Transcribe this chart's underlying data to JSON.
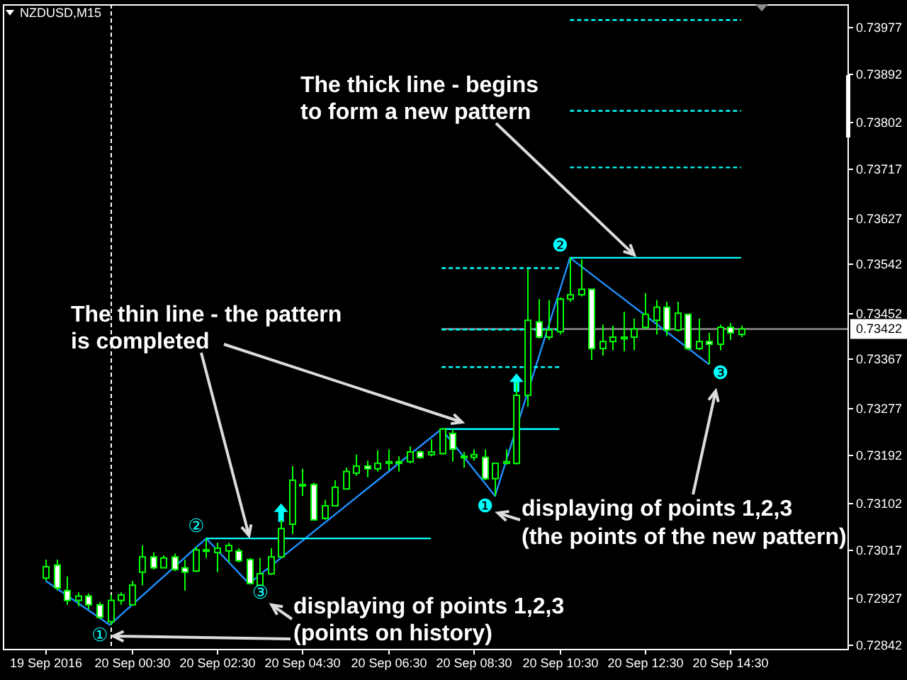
{
  "chart_data": {
    "type": "candlestick",
    "title": "NZDUSD,M15",
    "color": "#00ff00",
    "x": [
      "2016-09-19T22:30",
      "2016-09-19T22:45",
      "2016-09-19T23:00",
      "2016-09-19T23:15",
      "2016-09-19T23:30",
      "2016-09-19T23:45",
      "2016-09-20T00:00",
      "2016-09-20T00:15",
      "2016-09-20T00:30",
      "2016-09-20T00:45",
      "2016-09-20T01:00",
      "2016-09-20T01:15",
      "2016-09-20T01:30",
      "2016-09-20T01:45",
      "2016-09-20T02:00",
      "2016-09-20T02:15",
      "2016-09-20T02:30",
      "2016-09-20T02:45",
      "2016-09-20T03:00",
      "2016-09-20T03:15",
      "2016-09-20T03:30",
      "2016-09-20T03:45",
      "2016-09-20T04:00",
      "2016-09-20T04:15",
      "2016-09-20T04:30",
      "2016-09-20T04:45",
      "2016-09-20T05:00",
      "2016-09-20T05:15",
      "2016-09-20T05:30",
      "2016-09-20T05:45",
      "2016-09-20T06:00",
      "2016-09-20T06:15",
      "2016-09-20T06:30",
      "2016-09-20T06:45",
      "2016-09-20T07:00",
      "2016-09-20T07:15",
      "2016-09-20T07:30",
      "2016-09-20T07:45",
      "2016-09-20T08:00",
      "2016-09-20T08:15",
      "2016-09-20T08:30",
      "2016-09-20T08:45",
      "2016-09-20T09:00",
      "2016-09-20T09:15",
      "2016-09-20T09:30",
      "2016-09-20T09:45",
      "2016-09-20T10:00",
      "2016-09-20T10:15",
      "2016-09-20T10:30",
      "2016-09-20T10:45",
      "2016-09-20T11:00",
      "2016-09-20T11:15",
      "2016-09-20T11:30",
      "2016-09-20T11:45",
      "2016-09-20T12:00",
      "2016-09-20T12:15",
      "2016-09-20T12:30",
      "2016-09-20T12:45",
      "2016-09-20T13:00",
      "2016-09-20T13:15",
      "2016-09-20T13:30",
      "2016-09-20T13:45",
      "2016-09-20T14:00",
      "2016-09-20T14:15",
      "2016-09-20T14:30",
      "2016-09-20T14:45"
    ],
    "ohlc": [
      [
        0.72964,
        0.72998,
        0.72959,
        0.72985
      ],
      [
        0.72988,
        0.72998,
        0.72941,
        0.72946
      ],
      [
        0.72941,
        0.72967,
        0.72915,
        0.72923
      ],
      [
        0.72923,
        0.72938,
        0.72912,
        0.72931
      ],
      [
        0.72931,
        0.72936,
        0.72907,
        0.72915
      ],
      [
        0.72915,
        0.7292,
        0.72889,
        0.72892
      ],
      [
        0.72884,
        0.72933,
        0.72878,
        0.72923
      ],
      [
        0.72923,
        0.72938,
        0.72915,
        0.72933
      ],
      [
        0.72915,
        0.72959,
        0.72915,
        0.72951
      ],
      [
        0.72975,
        0.73024,
        0.72951,
        0.73003
      ],
      [
        0.73003,
        0.73011,
        0.7298,
        0.72983
      ],
      [
        0.72983,
        0.73006,
        0.72983,
        0.73001
      ],
      [
        0.73003,
        0.73009,
        0.72977,
        0.7298
      ],
      [
        0.72983,
        0.72998,
        0.72941,
        0.72975
      ],
      [
        0.72977,
        0.73022,
        0.72975,
        0.73016
      ],
      [
        0.73016,
        0.73037,
        0.73001,
        0.73014
      ],
      [
        0.73011,
        0.73029,
        0.72975,
        0.73019
      ],
      [
        0.73014,
        0.73029,
        0.72993,
        0.73024
      ],
      [
        0.73014,
        0.73019,
        0.72993,
        0.72996
      ],
      [
        0.72998,
        0.73001,
        0.72954,
        0.72954
      ],
      [
        0.72951,
        0.73001,
        0.72951,
        0.72972
      ],
      [
        0.72972,
        0.73019,
        0.7297,
        0.73003
      ],
      [
        0.73003,
        0.73071,
        0.73003,
        0.73055
      ],
      [
        0.73063,
        0.7317,
        0.73045,
        0.73144
      ],
      [
        0.73134,
        0.73165,
        0.73115,
        0.73136
      ],
      [
        0.73136,
        0.73139,
        0.73071,
        0.73071
      ],
      [
        0.73074,
        0.73108,
        0.73071,
        0.73097
      ],
      [
        0.73097,
        0.73144,
        0.73097,
        0.73131
      ],
      [
        0.73128,
        0.73167,
        0.73128,
        0.7316
      ],
      [
        0.73157,
        0.73191,
        0.73152,
        0.7317
      ],
      [
        0.7317,
        0.7318,
        0.73149,
        0.73165
      ],
      [
        0.73165,
        0.73199,
        0.7316,
        0.73175
      ],
      [
        0.73175,
        0.73201,
        0.73162,
        0.73178
      ],
      [
        0.73178,
        0.73188,
        0.7316,
        0.73175
      ],
      [
        0.73178,
        0.73206,
        0.73175,
        0.73196
      ],
      [
        0.73196,
        0.73199,
        0.73183,
        0.73186
      ],
      [
        0.73191,
        0.73219,
        0.73188,
        0.73196
      ],
      [
        0.73193,
        0.73238,
        0.73191,
        0.73238
      ],
      [
        0.7323,
        0.73238,
        0.73178,
        0.73201
      ],
      [
        0.73188,
        0.73196,
        0.73167,
        0.73186
      ],
      [
        0.73186,
        0.73201,
        0.7318,
        0.73191
      ],
      [
        0.73186,
        0.73201,
        0.73144,
        0.73147
      ],
      [
        0.73147,
        0.73175,
        0.73115,
        0.73175
      ],
      [
        0.73175,
        0.73201,
        0.73173,
        0.73178
      ],
      [
        0.73175,
        0.73324,
        0.73173,
        0.733
      ],
      [
        0.733,
        0.73532,
        0.73279,
        0.73438
      ],
      [
        0.73435,
        0.73477,
        0.73404,
        0.73407
      ],
      [
        0.73407,
        0.73475,
        0.73402,
        0.7342
      ],
      [
        0.73417,
        0.7348,
        0.73412,
        0.73477
      ],
      [
        0.73477,
        0.73553,
        0.73472,
        0.73485
      ],
      [
        0.73485,
        0.7355,
        0.73482,
        0.73495
      ],
      [
        0.73495,
        0.73495,
        0.73365,
        0.73386
      ],
      [
        0.73386,
        0.7343,
        0.73373,
        0.73399
      ],
      [
        0.73399,
        0.73428,
        0.73383,
        0.73407
      ],
      [
        0.73404,
        0.73454,
        0.73381,
        0.73407
      ],
      [
        0.73407,
        0.73441,
        0.73383,
        0.73422
      ],
      [
        0.73425,
        0.73488,
        0.73422,
        0.73449
      ],
      [
        0.73438,
        0.73475,
        0.73412,
        0.73462
      ],
      [
        0.73462,
        0.73472,
        0.73409,
        0.7342
      ],
      [
        0.7342,
        0.73472,
        0.73417,
        0.73451
      ],
      [
        0.73449,
        0.73449,
        0.73383,
        0.73386
      ],
      [
        0.73386,
        0.73441,
        0.73383,
        0.73399
      ],
      [
        0.73399,
        0.73415,
        0.73357,
        0.73394
      ],
      [
        0.73394,
        0.7343,
        0.73383,
        0.73425
      ],
      [
        0.73425,
        0.73433,
        0.73402,
        0.73415
      ],
      [
        0.73412,
        0.73428,
        0.73407,
        0.73422
      ]
    ],
    "xlim": [
      "2016-09-19T21:30",
      "2016-09-20T17:14"
    ],
    "xticks": [
      {
        "value": "2016-09-19T22:30",
        "label": "19 Sep 2016"
      },
      {
        "value": "2016-09-20T00:30",
        "label": "20 Sep 00:30"
      },
      {
        "value": "2016-09-20T02:30",
        "label": "20 Sep 02:30"
      },
      {
        "value": "2016-09-20T04:30",
        "label": "20 Sep 04:30"
      },
      {
        "value": "2016-09-20T06:30",
        "label": "20 Sep 06:30"
      },
      {
        "value": "2016-09-20T08:30",
        "label": "20 Sep 08:30"
      },
      {
        "value": "2016-09-20T10:30",
        "label": "20 Sep 10:30"
      },
      {
        "value": "2016-09-20T12:30",
        "label": "20 Sep 12:30"
      },
      {
        "value": "2016-09-20T14:30",
        "label": "20 Sep 14:30"
      }
    ],
    "ylim": [
      0.72834,
      0.74019
    ],
    "yticks": [
      0.72842,
      0.72927,
      0.73017,
      0.73102,
      0.73192,
      0.73277,
      0.73367,
      0.73452,
      0.73542,
      0.73627,
      0.73717,
      0.73802,
      0.73892,
      0.73977
    ],
    "series": [
      {
        "type": "line",
        "name": "0.73422",
        "color": "#909090",
        "x": [
          "2016-09-20T07:45",
          "2016-09-20T17:14"
        ],
        "values": [
          0.73422,
          0.73422
        ]
      },
      {
        "type": "line",
        "color": "#1e90ff",
        "x": [
          "2016-09-19T22:30",
          "2016-09-20T00:00",
          "2016-09-20T02:15",
          "2016-09-20T03:15",
          "2016-09-20T07:45",
          "2016-09-20T09:00",
          "2016-09-20T10:45",
          "2016-09-20T14:00"
        ],
        "values": [
          0.72959,
          0.72878,
          0.73037,
          0.72954,
          0.73238,
          0.73115,
          0.73553,
          0.73357
        ]
      },
      {
        "type": "line",
        "color": "#00ffff",
        "x": [
          "2016-09-20T02:15",
          "2016-09-20T07:30"
        ],
        "values": [
          0.73037,
          0.73037
        ]
      },
      {
        "type": "line",
        "color": "#00ffff",
        "x": [
          "2016-09-20T07:45",
          "2016-09-20T10:30"
        ],
        "values": [
          0.73238,
          0.73238
        ]
      },
      {
        "type": "line",
        "color": "#00ffff",
        "x": [
          "2016-09-20T10:45",
          "2016-09-20T14:45"
        ],
        "values": [
          0.73553,
          0.73553
        ]
      },
      {
        "type": "line",
        "color": "#00ffff",
        "line_style": "dashed",
        "x": [
          "2016-09-20T10:45",
          "2016-09-20T14:45"
        ],
        "values": [
          0.7399,
          0.7399
        ]
      },
      {
        "type": "line",
        "color": "#00ffff",
        "line_style": "dashed",
        "x": [
          "2016-09-20T10:45",
          "2016-09-20T14:45"
        ],
        "values": [
          0.73823,
          0.73823
        ]
      },
      {
        "type": "line",
        "color": "#00ffff",
        "line_style": "dashed",
        "x": [
          "2016-09-20T10:45",
          "2016-09-20T14:45"
        ],
        "values": [
          0.73719,
          0.73719
        ]
      },
      {
        "type": "line",
        "color": "#00ffff",
        "line_style": "dashed",
        "x": [
          "2016-09-20T07:45",
          "2016-09-20T10:30"
        ],
        "values": [
          0.73534,
          0.73534
        ]
      },
      {
        "type": "line",
        "color": "#00ffff",
        "line_style": "dashed",
        "x": [
          "2016-09-20T07:45",
          "2016-09-20T10:30"
        ],
        "values": [
          0.73421,
          0.73421
        ]
      },
      {
        "type": "line",
        "color": "#00ffff",
        "line_style": "dashed",
        "x": [
          "2016-09-20T07:45",
          "2016-09-20T10:30"
        ],
        "values": [
          0.73352,
          0.73352
        ]
      },
      {
        "type": "scatter",
        "color": "#00ffff",
        "marker": "triangle",
        "x": [
          "2016-09-20T04:00",
          "2016-09-20T09:30"
        ],
        "values": [
          0.73083,
          0.73322
        ]
      }
    ],
    "ref_lines": [
      {
        "axis": "x",
        "value": "2016-09-20T00:00",
        "color": "#ffffff",
        "line_style": "dashed"
      }
    ],
    "annotations": [
      {
        "text": "①",
        "x": "2016-09-20T00:00",
        "y": 0.72878
      },
      {
        "text": "②",
        "x": "2016-09-20T02:15",
        "y": 0.73037
      },
      {
        "text": "③",
        "x": "2016-09-20T03:15",
        "y": 0.72954
      },
      {
        "text": "❶",
        "x": "2016-09-20T09:00",
        "y": 0.73115
      },
      {
        "text": "❷",
        "x": "2016-09-20T10:45",
        "y": 0.73553
      },
      {
        "text": "❸",
        "x": "2016-09-20T14:00",
        "y": 0.73357
      },
      {
        "text": "The thick line - begins\nto form a new pattern",
        "x": "2016-09-20T12:15",
        "y": 0.73553
      },
      {
        "text": "The thin line - the pattern\nis completed",
        "x": "2016-09-20T03:15",
        "y": 0.73037
      },
      {
        "text": "displaying of points 1,2,3\n(the points of the new pattern)",
        "x": "2016-09-20T09:00",
        "y": 0.73115
      },
      {
        "text": "displaying of points 1,2,3\n(points on history)",
        "x": "2016-09-20T03:15",
        "y": 0.72954
      }
    ]
  }
}
